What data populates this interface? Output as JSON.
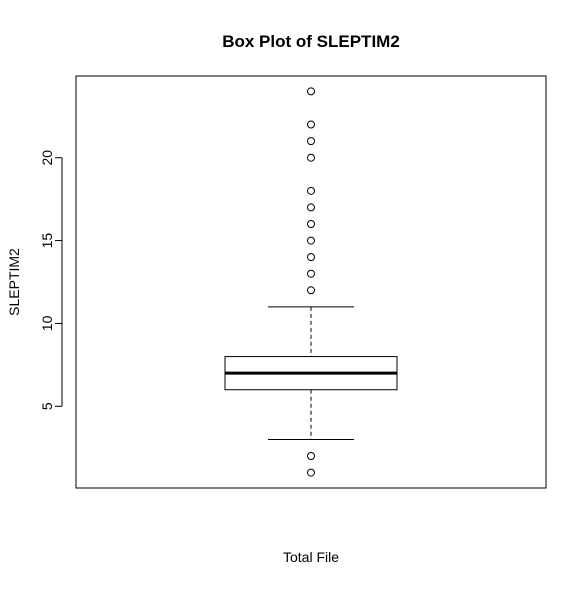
{
  "chart_data": {
    "type": "box",
    "title": "Box Plot of SLEPTIM2",
    "xlabel": "Total File",
    "ylabel": "SLEPTIM2",
    "ylim": [
      0.07,
      24.93
    ],
    "yticks": [
      5,
      10,
      15,
      20
    ],
    "ytick_labels": [
      "5",
      "10",
      "15",
      "20"
    ],
    "grid": false,
    "legend": "none",
    "series": [
      {
        "whisker_low": 3,
        "q1": 6,
        "median": 7,
        "q3": 8,
        "whisker_high": 11,
        "outliers": [
          1,
          2,
          12,
          13,
          14,
          15,
          16,
          17,
          18,
          20,
          21,
          22,
          24
        ]
      }
    ]
  }
}
